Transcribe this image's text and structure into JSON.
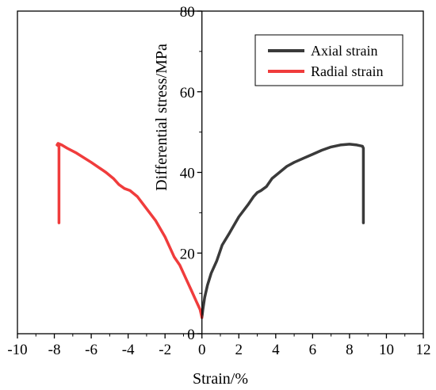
{
  "chart_data": {
    "type": "line",
    "xlabel": "Strain/%",
    "ylabel": "Differential stress/MPa",
    "xlim": [
      -10,
      12
    ],
    "ylim": [
      0,
      80
    ],
    "xticks": [
      -10,
      -8,
      -6,
      -4,
      -2,
      0,
      2,
      4,
      6,
      8,
      10,
      12
    ],
    "yticks": [
      0,
      20,
      40,
      60,
      80
    ],
    "y_axis_at_x": 0,
    "grid": false,
    "legend_position": "top-right",
    "series": [
      {
        "name": "Axial strain",
        "color": "#3a3a3a",
        "x": [
          0,
          0.05,
          0.15,
          0.3,
          0.5,
          0.8,
          1.1,
          1.5,
          2.0,
          2.5,
          2.8,
          3.0,
          3.2,
          3.5,
          3.8,
          4.2,
          4.6,
          5.0,
          5.5,
          6.0,
          6.5,
          7.0,
          7.5,
          8.0,
          8.4,
          8.7,
          8.75,
          8.75
        ],
        "y": [
          4,
          6,
          9,
          12,
          15,
          18,
          22,
          25,
          29,
          32,
          34,
          35,
          35.5,
          36.5,
          38.5,
          40,
          41.5,
          42.5,
          43.5,
          44.5,
          45.5,
          46.3,
          46.8,
          47,
          46.8,
          46.5,
          46,
          27.5
        ]
      },
      {
        "name": "Radial strain",
        "color": "#f03c3c",
        "x": [
          0,
          -0.1,
          -0.3,
          -0.6,
          -0.9,
          -1.2,
          -1.5,
          -1.7,
          -2.0,
          -2.5,
          -3.0,
          -3.5,
          -3.9,
          -4.2,
          -4.5,
          -4.8,
          -5.2,
          -6.0,
          -6.8,
          -7.3,
          -7.6,
          -7.8,
          -7.85,
          -7.75,
          -7.75
        ],
        "y": [
          4,
          6,
          8,
          11,
          14,
          17,
          19,
          21,
          24,
          28,
          31,
          34,
          35.5,
          36,
          37,
          38.5,
          40,
          42.5,
          44.8,
          46,
          46.8,
          47.2,
          46.8,
          46.5,
          27.5
        ]
      }
    ]
  }
}
